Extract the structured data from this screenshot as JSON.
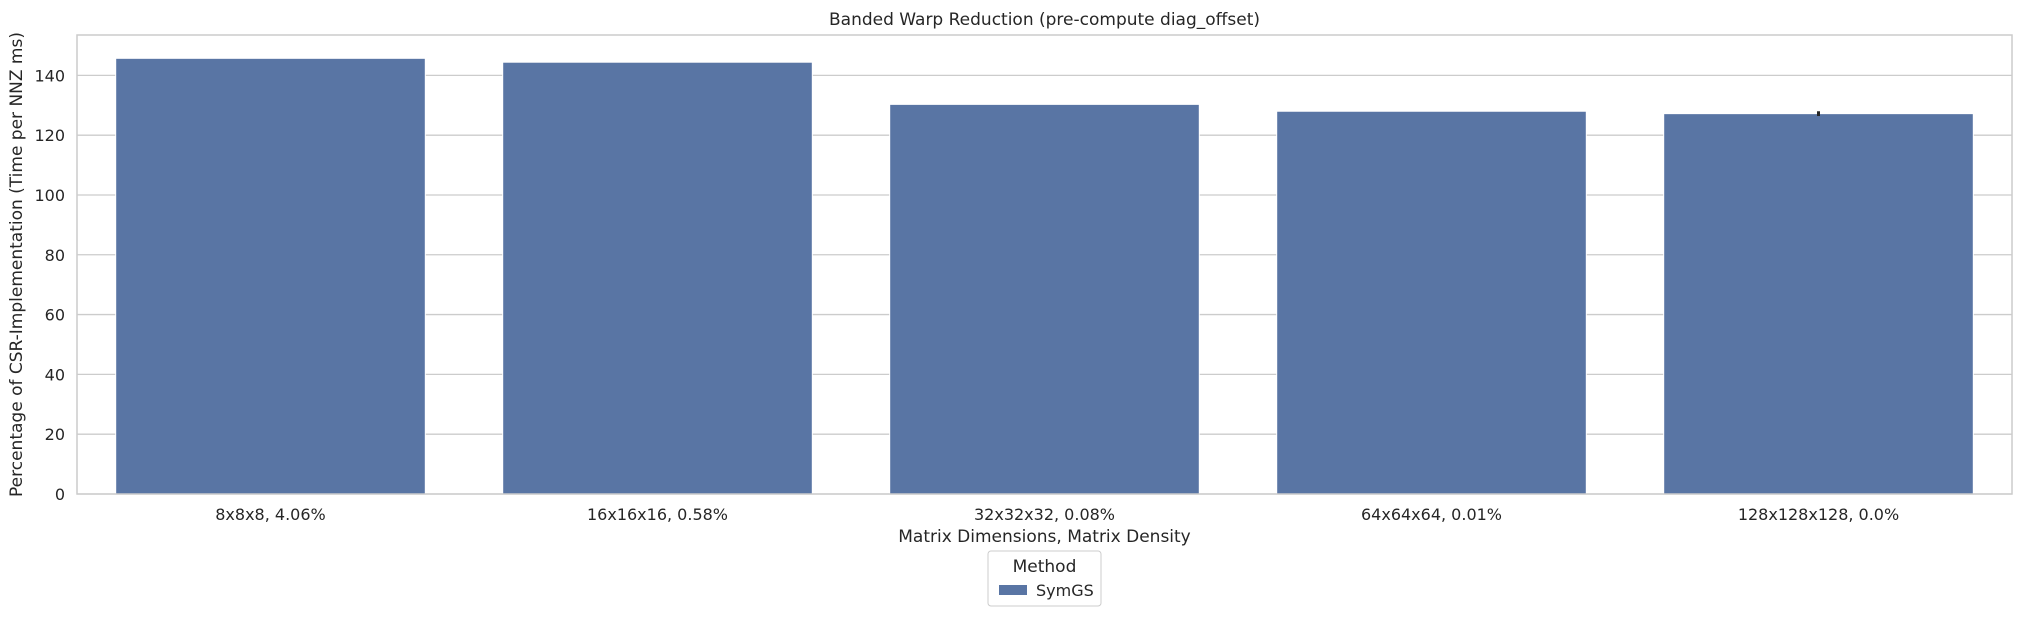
{
  "chart_data": {
    "type": "bar",
    "title": "Banded Warp Reduction (pre-compute diag_offset)",
    "xlabel": "Matrix Dimensions, Matrix Density",
    "ylabel": "Percentage of CSR-Implementation (Time per NNZ ms)",
    "categories": [
      "8x8x8, 4.06%",
      "16x16x16, 0.58%",
      "32x32x32, 0.08%",
      "64x64x64, 0.01%",
      "128x128x128, 0.0%"
    ],
    "series": [
      {
        "name": "SymGS",
        "color": "#5975a4",
        "values": [
          145.7,
          144.4,
          130.3,
          128.0,
          127.2
        ],
        "error": [
          0,
          0,
          0,
          0,
          0.8
        ]
      }
    ],
    "ylim": [
      0,
      153.5
    ],
    "yticks": [
      0,
      20,
      40,
      60,
      80,
      100,
      120,
      140
    ],
    "grid": true,
    "legend": {
      "title": "Method",
      "placement": "below"
    }
  }
}
